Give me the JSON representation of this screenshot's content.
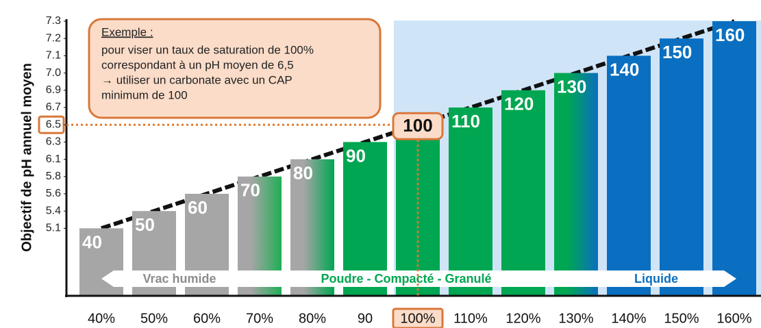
{
  "chart_data": {
    "type": "bar",
    "y_label": "Objectif de pH annuel moyen",
    "categories": [
      "40%",
      "50%",
      "60%",
      "70%",
      "80%",
      "90",
      "100%",
      "110%",
      "120%",
      "130%",
      "140%",
      "150%",
      "160%"
    ],
    "values": [
      5.1,
      5.4,
      5.6,
      5.8,
      6.1,
      6.3,
      6.5,
      6.7,
      6.9,
      7.0,
      7.1,
      7.2,
      7.3
    ],
    "cap": [
      40,
      50,
      60,
      70,
      80,
      90,
      100,
      110,
      120,
      130,
      140,
      150,
      160
    ],
    "colors": [
      [
        "#a6a6a6",
        "#a6a6a6"
      ],
      [
        "#a6a6a6",
        "#a6a6a6"
      ],
      [
        "#a6a6a6",
        "#a6a6a6"
      ],
      [
        "#a6a6a6",
        "#1fae55"
      ],
      [
        "#a6a6a6",
        "#00a651"
      ],
      [
        "#00a651",
        "#00a651"
      ],
      [
        "#00a651",
        "#00a651"
      ],
      [
        "#00a651",
        "#00a651"
      ],
      [
        "#00a651",
        "#00a651"
      ],
      [
        "#00a651",
        "#0a6fc0"
      ],
      [
        "#0a6fc0",
        "#0a6fc0"
      ],
      [
        "#0a6fc0",
        "#0a6fc0"
      ],
      [
        "#0a6fc0",
        "#0a6fc0"
      ]
    ],
    "yticks": [
      7.3,
      7.2,
      7.1,
      {
        "value": 7.0,
        "label": "7.0"
      },
      6.9,
      6.7,
      6.5,
      6.3,
      6.1,
      5.8,
      5.6,
      5.4,
      5.1
    ],
    "highlight": 6,
    "annotation": {
      "title": "Exemple :",
      "lines": [
        "pour viser un taux de saturation de 100%",
        "correspondant à un pH moyen de 6,5",
        "→ utiliser un carbonate avec un CAP",
        "minimum de 100"
      ]
    },
    "bands": [
      {
        "label": "Vrac humide",
        "color": "#8c8c8c"
      },
      {
        "label": "Poudre - Compacté - Granulé",
        "color": "#00a651"
      },
      {
        "label": "Liquide",
        "color": "#0a6fc0"
      }
    ]
  }
}
